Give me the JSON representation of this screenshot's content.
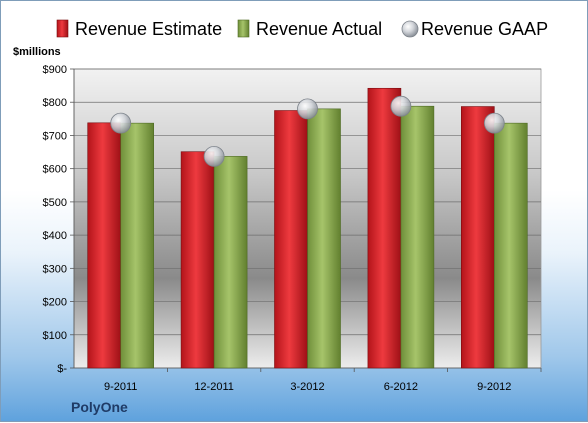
{
  "chart_data": {
    "type": "bar",
    "unit_label": "$millions",
    "categories": [
      "9-2011",
      "12-2011",
      "3-2012",
      "6-2012",
      "9-2012"
    ],
    "y_tick_labels": [
      "$-",
      "$100",
      "$200",
      "$300",
      "$400",
      "$500",
      "$600",
      "$700",
      "$800",
      "$900"
    ],
    "ylim": [
      0,
      900
    ],
    "grid": true,
    "legend_position": "top",
    "series": [
      {
        "name": "Revenue Estimate",
        "mark": "bar",
        "color": "#d9252b",
        "values": [
          738,
          651,
          775,
          842,
          787
        ]
      },
      {
        "name": "Revenue Actual",
        "mark": "bar",
        "color": "#8fb054",
        "values": [
          737,
          637,
          780,
          788,
          737
        ]
      },
      {
        "name": "Revenue GAAP",
        "mark": "circle",
        "color": "#c8ccd2",
        "values": [
          737,
          637,
          780,
          788,
          737
        ]
      }
    ],
    "company": "PolyOne"
  }
}
